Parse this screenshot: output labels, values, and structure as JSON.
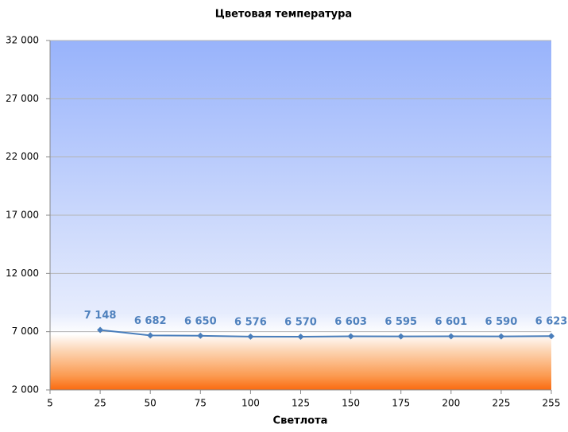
{
  "chart_data": {
    "type": "line",
    "title": "Цветовая температура",
    "x_label": "Светлота",
    "categories": [
      "5",
      "25",
      "50",
      "75",
      "100",
      "125",
      "150",
      "175",
      "200",
      "225",
      "255"
    ],
    "series": [
      {
        "name": "Цветовая температура",
        "color": "#4a7ebb",
        "values": [
          null,
          7148,
          6682,
          6650,
          6576,
          6570,
          6603,
          6595,
          6601,
          6590,
          6623
        ],
        "value_labels": [
          null,
          "7 148",
          "6 682",
          "6 650",
          "6 576",
          "6 570",
          "6 603",
          "6 595",
          "6 601",
          "6 590",
          "6 623"
        ]
      }
    ],
    "ylim": [
      2000,
      32000
    ],
    "yticks": [
      {
        "value": 2000,
        "label": "2 000"
      },
      {
        "value": 7000,
        "label": "7 000"
      },
      {
        "value": 12000,
        "label": "12 000"
      },
      {
        "value": 17000,
        "label": "17 000"
      },
      {
        "value": 22000,
        "label": "22 000"
      },
      {
        "value": 27000,
        "label": "27 000"
      },
      {
        "value": 32000,
        "label": "32 000"
      }
    ],
    "grid": true
  }
}
